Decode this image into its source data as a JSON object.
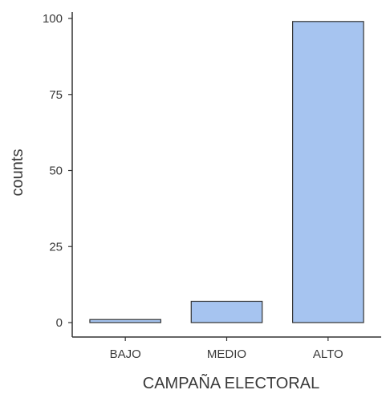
{
  "chart_data": {
    "type": "bar",
    "categories": [
      "BAJO",
      "MEDIO",
      "ALTO"
    ],
    "values": [
      1,
      7,
      99
    ],
    "xlabel": "CAMPAÑA ELECTORAL",
    "ylabel": "counts",
    "ylim": [
      0,
      100
    ],
    "yticks": [
      0,
      25,
      50,
      75,
      100
    ],
    "grid": false,
    "bar_color": "#a6c4f0",
    "bar_edge_color": "#333333"
  }
}
